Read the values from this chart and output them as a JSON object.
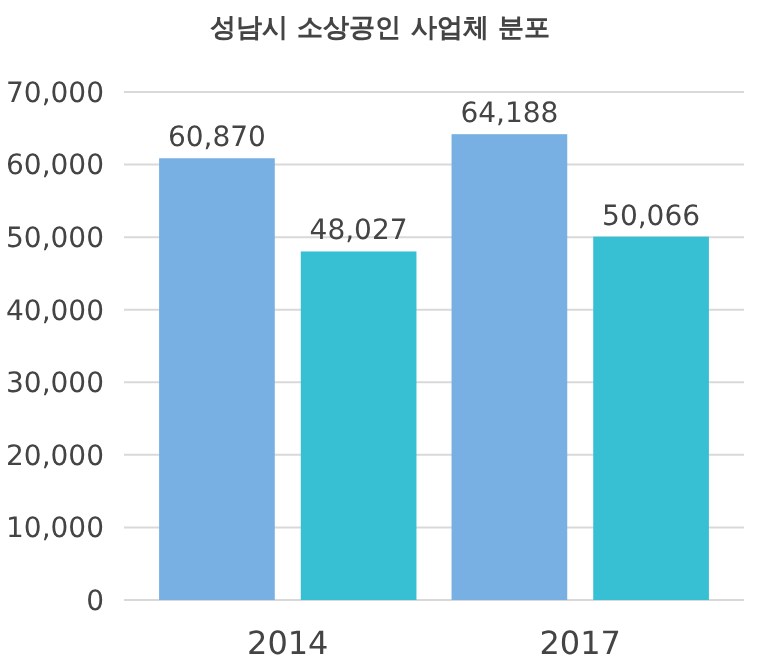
{
  "chart_data": {
    "type": "bar",
    "title": "성남시 소상공인 사업체 분포",
    "categories": [
      "2014",
      "2017"
    ],
    "series": [
      {
        "color": "#78b0e4",
        "values": [
          60870,
          64188
        ],
        "value_labels": [
          "60,870",
          "64,188"
        ]
      },
      {
        "color": "#37bfd3",
        "values": [
          48027,
          50066
        ],
        "value_labels": [
          "48,027",
          "50,066"
        ]
      }
    ],
    "ylim": [
      0,
      70000
    ],
    "yticks": [
      {
        "value": 0,
        "label": "0"
      },
      {
        "value": 10000,
        "label": "10,000"
      },
      {
        "value": 20000,
        "label": "20,000"
      },
      {
        "value": 30000,
        "label": "30,000"
      },
      {
        "value": 40000,
        "label": "40,000"
      },
      {
        "value": 50000,
        "label": "50,000"
      },
      {
        "value": 60000,
        "label": "60,000"
      },
      {
        "value": 70000,
        "label": "70,000"
      }
    ],
    "grid": "y"
  }
}
